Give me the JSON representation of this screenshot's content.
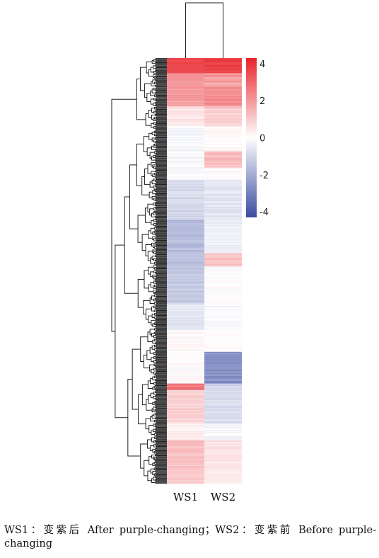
{
  "chart_data": {
    "type": "heatmap",
    "columns": [
      "WS1",
      "WS2"
    ],
    "colorbar": {
      "ticks": [
        4,
        2,
        0,
        -2,
        -4
      ],
      "min": -4.3,
      "max": 4.3,
      "colors": {
        "low": "#3b4ca0",
        "mid": "#ffffff",
        "high": "#e8232a"
      }
    },
    "row_blocks": [
      {
        "rows": 18,
        "WS1": [
          3.3,
          3.8
        ],
        "WS2": [
          3.4,
          4.0
        ]
      },
      {
        "rows": 40,
        "WS1": [
          1.6,
          2.4
        ],
        "WS2": [
          1.5,
          2.6
        ]
      },
      {
        "rows": 24,
        "WS1": [
          0.2,
          0.8
        ],
        "WS2": [
          0.6,
          1.3
        ]
      },
      {
        "rows": 30,
        "WS1": [
          -0.5,
          0.1
        ],
        "WS2": [
          -0.1,
          0.3
        ]
      },
      {
        "rows": 20,
        "WS1": [
          -0.5,
          0.2
        ],
        "WS2": [
          0.8,
          1.6
        ]
      },
      {
        "rows": 14,
        "WS1": [
          -0.3,
          0.1
        ],
        "WS2": [
          -0.2,
          0.3
        ]
      },
      {
        "rows": 48,
        "WS1": [
          -1.2,
          -0.6
        ],
        "WS2": [
          -0.9,
          -0.3
        ]
      },
      {
        "rows": 40,
        "WS1": [
          -1.9,
          -1.3
        ],
        "WS2": [
          -0.6,
          -0.1
        ]
      },
      {
        "rows": 16,
        "WS1": [
          -1.8,
          -1.2
        ],
        "WS2": [
          0.9,
          1.6
        ]
      },
      {
        "rows": 44,
        "WS1": [
          -1.6,
          -1.0
        ],
        "WS2": [
          -0.2,
          0.2
        ]
      },
      {
        "rows": 32,
        "WS1": [
          -0.9,
          -0.4
        ],
        "WS2": [
          -0.3,
          0.0
        ]
      },
      {
        "rows": 26,
        "WS1": [
          -0.3,
          0.3
        ],
        "WS2": [
          -0.1,
          0.2
        ]
      },
      {
        "rows": 38,
        "WS1": [
          -0.2,
          0.4
        ],
        "WS2": [
          -3.0,
          -2.2
        ]
      },
      {
        "rows": 8,
        "WS1": [
          2.4,
          3.0
        ],
        "WS2": [
          -1.2,
          -0.6
        ]
      },
      {
        "rows": 40,
        "WS1": [
          0.6,
          1.2
        ],
        "WS2": [
          -1.1,
          -0.5
        ]
      },
      {
        "rows": 20,
        "WS1": [
          0.1,
          0.5
        ],
        "WS2": [
          -0.5,
          0.1
        ]
      },
      {
        "rows": 34,
        "WS1": [
          0.9,
          1.6
        ],
        "WS2": [
          0.2,
          0.8
        ]
      },
      {
        "rows": 18,
        "WS1": [
          0.7,
          1.3
        ],
        "WS2": [
          0.2,
          0.6
        ]
      }
    ],
    "dendrogram": "row and column hierarchical clustering"
  },
  "caption": "WS1：变紫后 After purple-changing；WS2：变紫前 Before purple-changing"
}
